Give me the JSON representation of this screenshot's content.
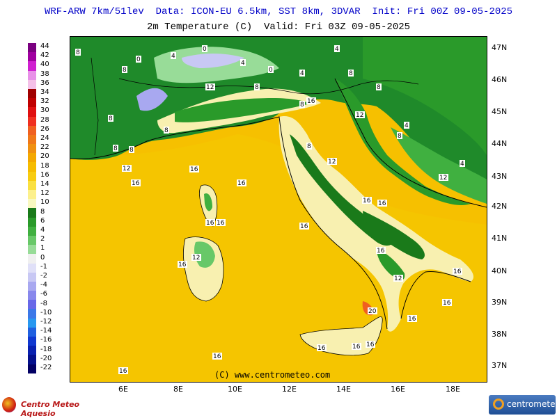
{
  "header": {
    "line1": "WRF-ARW 7km/51lev  Data: ICON-EU 6.5km, SST 8km, 3DVAR  Init: Fri 00Z 09-05-2025",
    "line2": "2m Temperature (C)  Valid: Fri 03Z 09-05-2025"
  },
  "latitudes": [
    "47N",
    "46N",
    "45N",
    "44N",
    "43N",
    "42N",
    "41N",
    "40N",
    "39N",
    "38N",
    "37N"
  ],
  "longitudes": [
    "6E",
    "8E",
    "10E",
    "12E",
    "14E",
    "16E",
    "18E"
  ],
  "copyright": "(C) www.centrometeo.com",
  "colorbar": {
    "labels": [
      "44",
      "42",
      "40",
      "38",
      "36",
      "34",
      "32",
      "30",
      "28",
      "26",
      "24",
      "22",
      "20",
      "18",
      "16",
      "14",
      "12",
      "10",
      "8",
      "6",
      "4",
      "2",
      "1",
      "0",
      "-1",
      "-2",
      "-4",
      "-6",
      "-8",
      "-10",
      "-12",
      "-14",
      "-16",
      "-18",
      "-20",
      "-22"
    ],
    "colors": [
      "#7a0080",
      "#a000a0",
      "#d020d0",
      "#e890e8",
      "#f4c0e8",
      "#a00000",
      "#c00000",
      "#e01010",
      "#f03020",
      "#f06020",
      "#f07818",
      "#f09010",
      "#f4a800",
      "#f6bc00",
      "#f8cc10",
      "#fae040",
      "#fcf08c",
      "#f8f8c0",
      "#1a7a1a",
      "#2a9a2a",
      "#40b040",
      "#68c868",
      "#98dc98",
      "#f0f0f0",
      "#e0e0f8",
      "#c8c8f4",
      "#a8a8f0",
      "#8888ec",
      "#6868e8",
      "#3c78e8",
      "#2898f0",
      "#2060e0",
      "#1038d0",
      "#0820b0",
      "#04108c",
      "#020064"
    ]
  },
  "map": {
    "temperature_labels": [
      "0",
      "0",
      "0",
      "4",
      "4",
      "4",
      "4",
      "4",
      "4",
      "8",
      "8",
      "8",
      "8",
      "8",
      "8",
      "8",
      "8",
      "8",
      "8",
      "8",
      "8",
      "12",
      "12",
      "12",
      "12",
      "12",
      "12",
      "12",
      "16",
      "16",
      "16",
      "16",
      "16",
      "16",
      "16",
      "16",
      "16",
      "16",
      "16",
      "16",
      "16",
      "16",
      "16",
      "16",
      "16",
      "16",
      "16",
      "20"
    ]
  },
  "logos": {
    "left": "Centro Meteo Aquesio",
    "right": "centrometeo"
  }
}
